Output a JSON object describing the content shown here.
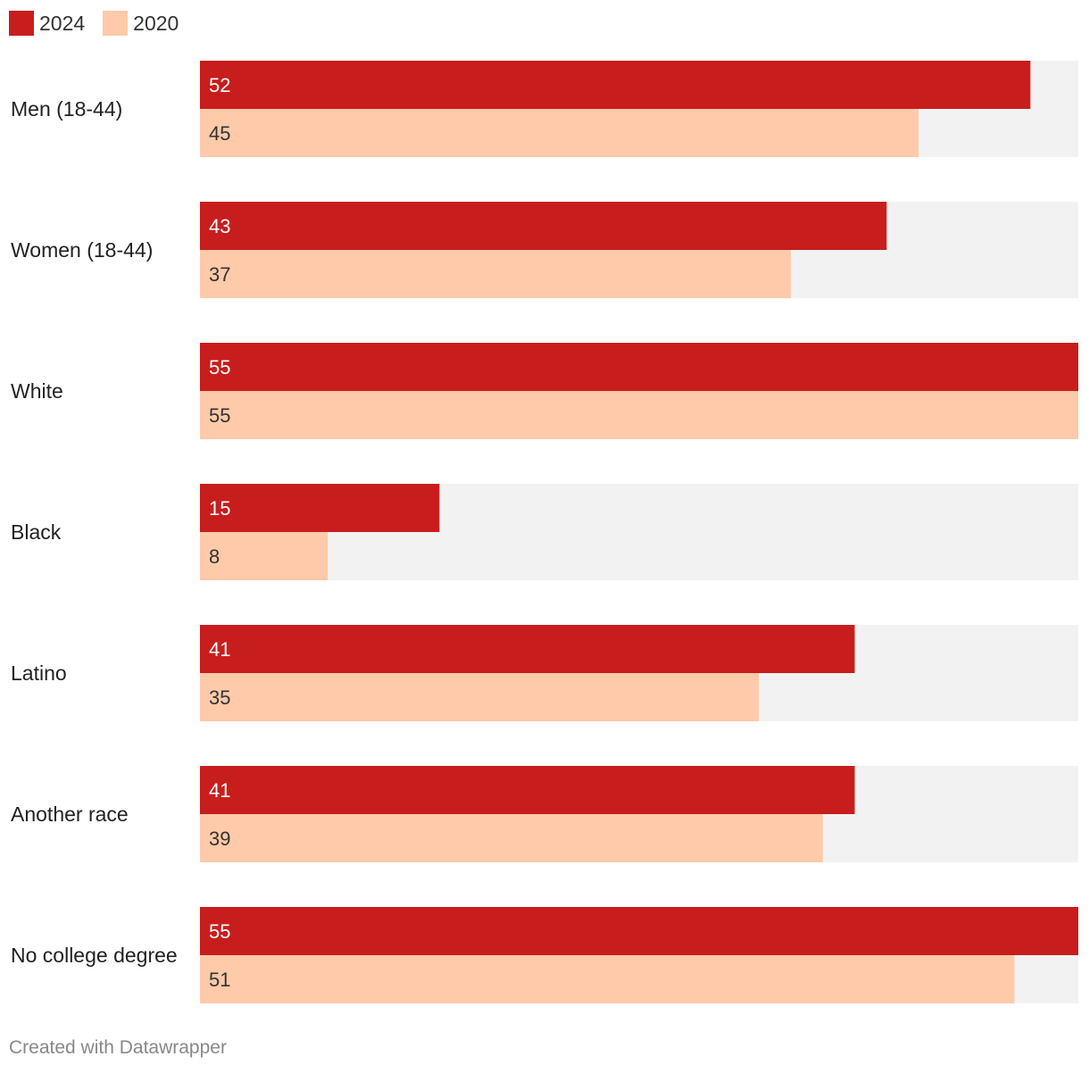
{
  "legend": [
    {
      "label": "2024",
      "color": "#c71e1d"
    },
    {
      "label": "2020",
      "color": "#ffcaa9"
    }
  ],
  "chart_data": {
    "type": "bar",
    "orientation": "horizontal",
    "categories": [
      "Men (18-44)",
      "Women (18-44)",
      "White",
      "Black",
      "Latino",
      "Another race",
      "No college degree"
    ],
    "series": [
      {
        "name": "2024",
        "values": [
          52,
          43,
          55,
          15,
          41,
          41,
          55
        ],
        "color": "#c71e1d",
        "label_color": "#ffffff"
      },
      {
        "name": "2020",
        "values": [
          45,
          37,
          55,
          8,
          35,
          39,
          51
        ],
        "color": "#ffcaa9",
        "label_color": "#333333"
      }
    ],
    "xlim": [
      0,
      55
    ],
    "background_bar_color": "#f2f2f2",
    "title": "",
    "xlabel": "",
    "ylabel": ""
  },
  "footer": "Created with Datawrapper"
}
